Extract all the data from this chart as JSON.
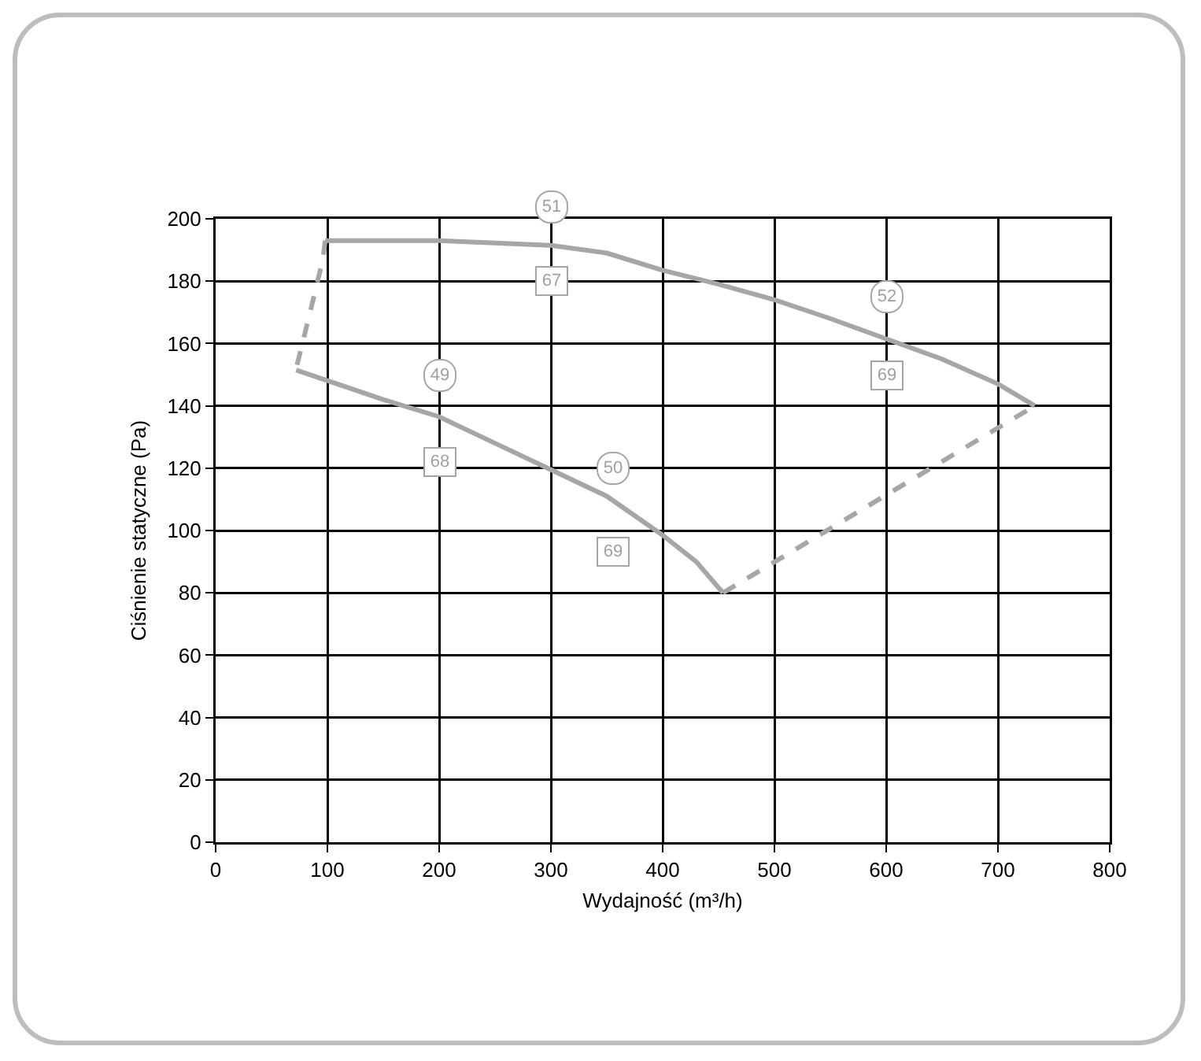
{
  "chart_data": {
    "type": "line",
    "xlabel": "Wydajność (m³/h)",
    "ylabel": "Ciśnienie statyczne (Pa)",
    "xlim": [
      0,
      800
    ],
    "ylim": [
      0,
      200
    ],
    "xticks": [
      0,
      100,
      200,
      300,
      400,
      500,
      600,
      700,
      800
    ],
    "yticks": [
      0,
      20,
      40,
      60,
      80,
      100,
      120,
      140,
      160,
      180,
      200
    ],
    "grid": true,
    "marker": "none",
    "series": [
      {
        "color": "#a6a6a6",
        "line_style": "solid",
        "x": [
          98,
          200,
          300,
          350,
          400,
          450,
          500,
          550,
          600,
          650,
          700,
          733
        ],
        "values": [
          193,
          193,
          191.5,
          189,
          183.5,
          179,
          174,
          168,
          161.5,
          155,
          147,
          140
        ]
      },
      {
        "color": "#a6a6a6",
        "line_style": "solid",
        "x": [
          72,
          150,
          200,
          250,
          300,
          350,
          400,
          430,
          454
        ],
        "values": [
          151.5,
          142,
          136.5,
          128,
          119.5,
          111,
          98.5,
          90,
          80
        ]
      },
      {
        "color": "#a6a6a6",
        "line_style": "dashed",
        "x": [
          98,
          96,
          77,
          72
        ],
        "values": [
          193,
          187,
          159,
          152
        ]
      },
      {
        "color": "#a6a6a6",
        "line_style": "dashed",
        "x": [
          454,
          733
        ],
        "values": [
          80,
          140
        ]
      }
    ],
    "annotations": [
      "51",
      "67",
      "52",
      "69",
      "49",
      "68",
      "50",
      "69"
    ]
  }
}
